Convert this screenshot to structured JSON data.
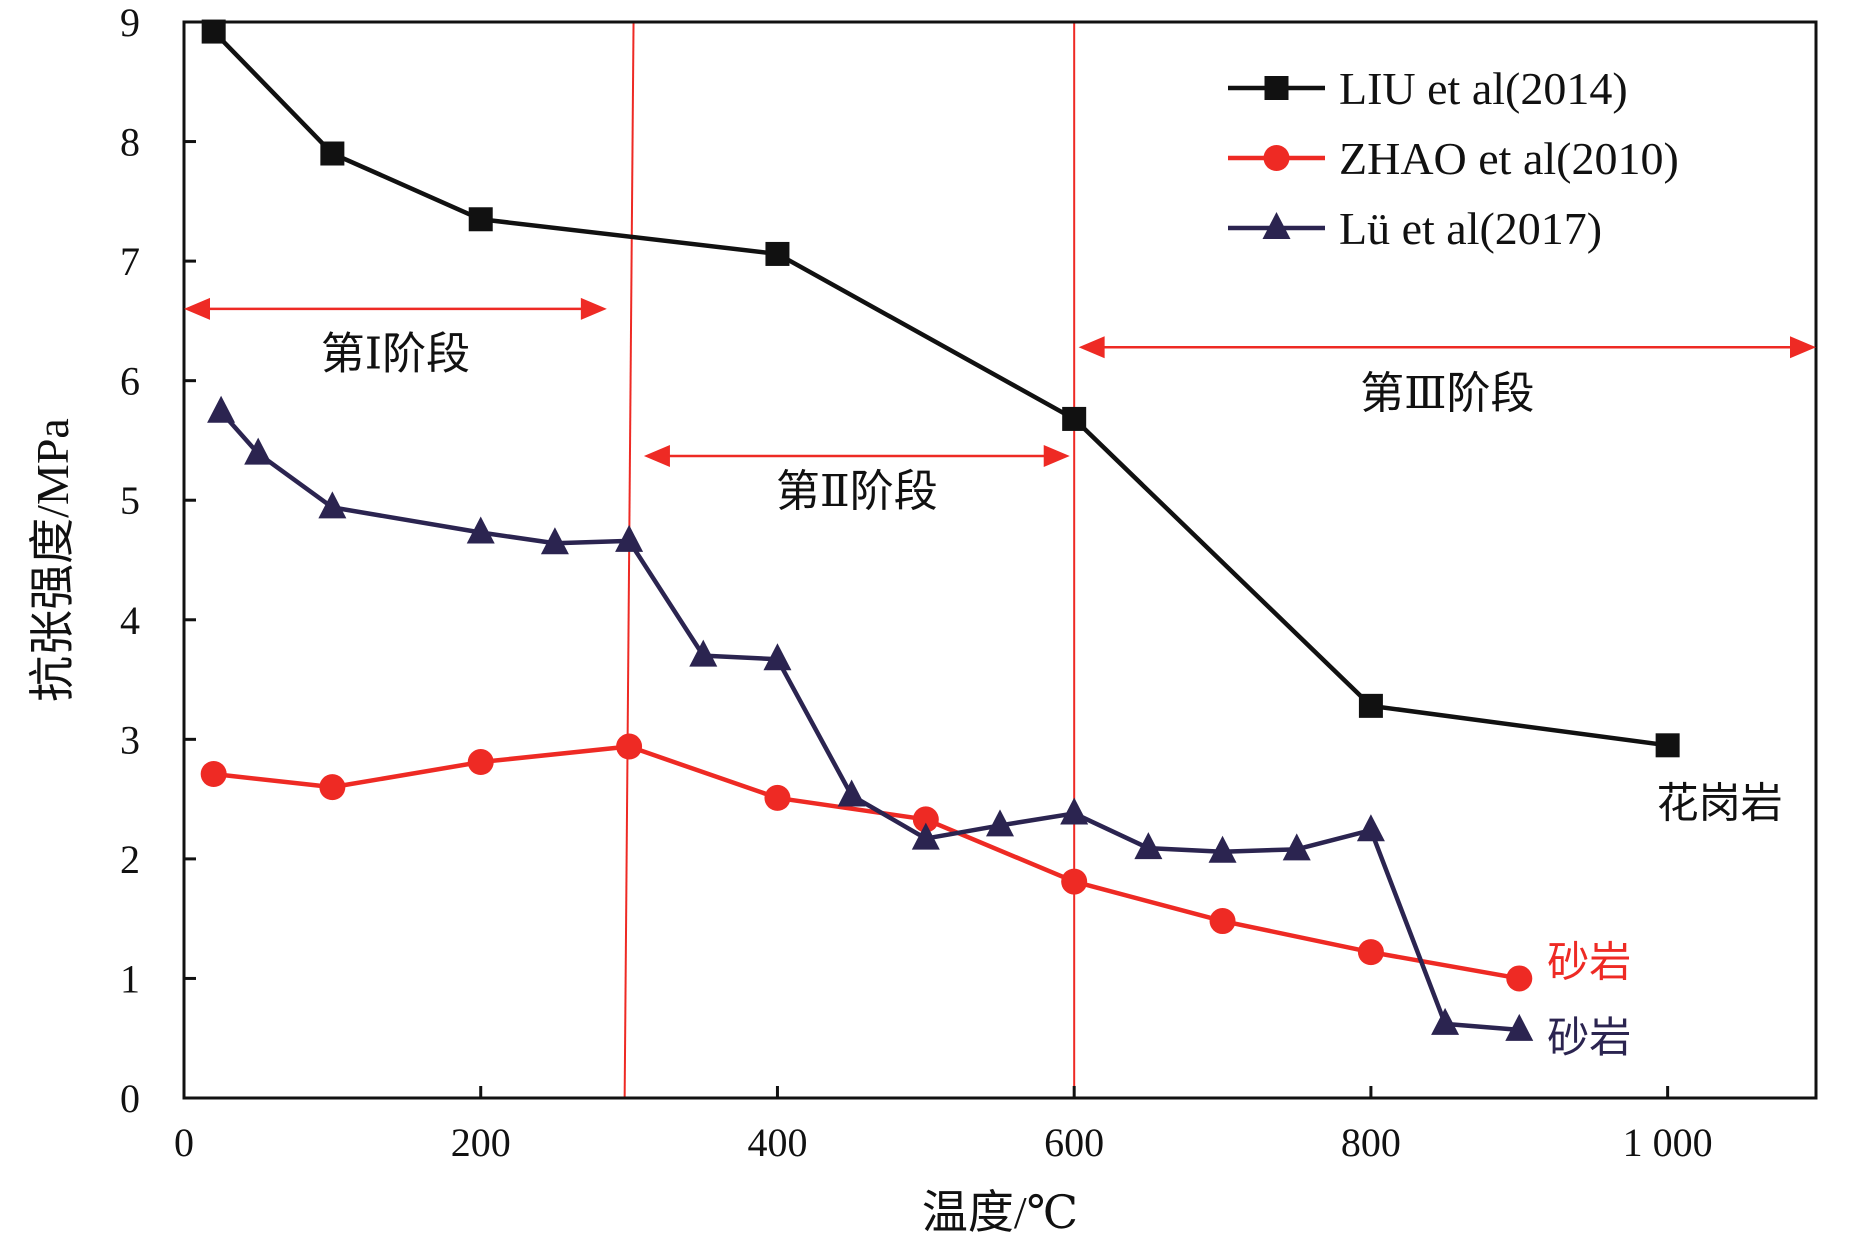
{
  "chart_data": {
    "type": "line",
    "xlabel": "温度/℃",
    "ylabel": "抗张强度/MPa",
    "xlim": [
      0,
      1100
    ],
    "ylim": [
      0,
      9
    ],
    "x_ticks": [
      0,
      200,
      400,
      600,
      800,
      1000
    ],
    "x_tick_labels": [
      "0",
      "200",
      "400",
      "600",
      "800",
      "1 000"
    ],
    "y_ticks": [
      0,
      1,
      2,
      3,
      4,
      5,
      6,
      7,
      8,
      9
    ],
    "y_tick_labels": [
      "0",
      "1",
      "2",
      "3",
      "4",
      "5",
      "6",
      "7",
      "8",
      "9"
    ],
    "grid": false,
    "legend_position": "top-right",
    "series": [
      {
        "name": "LIU et al(2014)",
        "color": "#111111",
        "marker": "square",
        "end_label": "花岗岩",
        "x": [
          20,
          100,
          200,
          400,
          600,
          800,
          1000
        ],
        "y": [
          8.92,
          7.9,
          7.35,
          7.06,
          5.68,
          3.28,
          2.95
        ]
      },
      {
        "name": "ZHAO et al(2010)",
        "color": "#ee2a24",
        "marker": "circle",
        "end_label": "砂岩",
        "x": [
          20,
          100,
          200,
          300,
          400,
          500,
          600,
          700,
          800,
          900
        ],
        "y": [
          2.71,
          2.6,
          2.81,
          2.94,
          2.51,
          2.33,
          1.81,
          1.48,
          1.22,
          1.0
        ]
      },
      {
        "name": "Lü et al(2017)",
        "color": "#2b2450",
        "marker": "triangle",
        "end_label": "砂岩",
        "x": [
          25,
          50,
          100,
          200,
          250,
          300,
          350,
          400,
          450,
          500,
          550,
          600,
          650,
          700,
          750,
          800,
          850,
          900
        ],
        "y": [
          5.74,
          5.39,
          4.94,
          4.73,
          4.64,
          4.66,
          3.7,
          3.67,
          2.53,
          2.17,
          2.28,
          2.38,
          2.09,
          2.06,
          2.08,
          2.24,
          0.62,
          0.57
        ]
      }
    ],
    "boundaries": [
      {
        "x_bottom": 297,
        "x_top": 303,
        "color": "#ee2a24"
      },
      {
        "x_bottom": 600,
        "x_top": 600,
        "color": "#ee2a24"
      }
    ],
    "stages": [
      {
        "label": "第Ⅰ阶段",
        "arrow_x": [
          0,
          285
        ],
        "arrow_y": 6.6,
        "label_y": 6.1
      },
      {
        "label": "第Ⅱ阶段",
        "arrow_x": [
          310,
          597
        ],
        "arrow_y": 5.37,
        "label_y": 4.95
      },
      {
        "label": "第Ⅲ阶段",
        "arrow_x": [
          603,
          1100
        ],
        "arrow_y": 6.28,
        "label_y": 5.77
      }
    ]
  }
}
